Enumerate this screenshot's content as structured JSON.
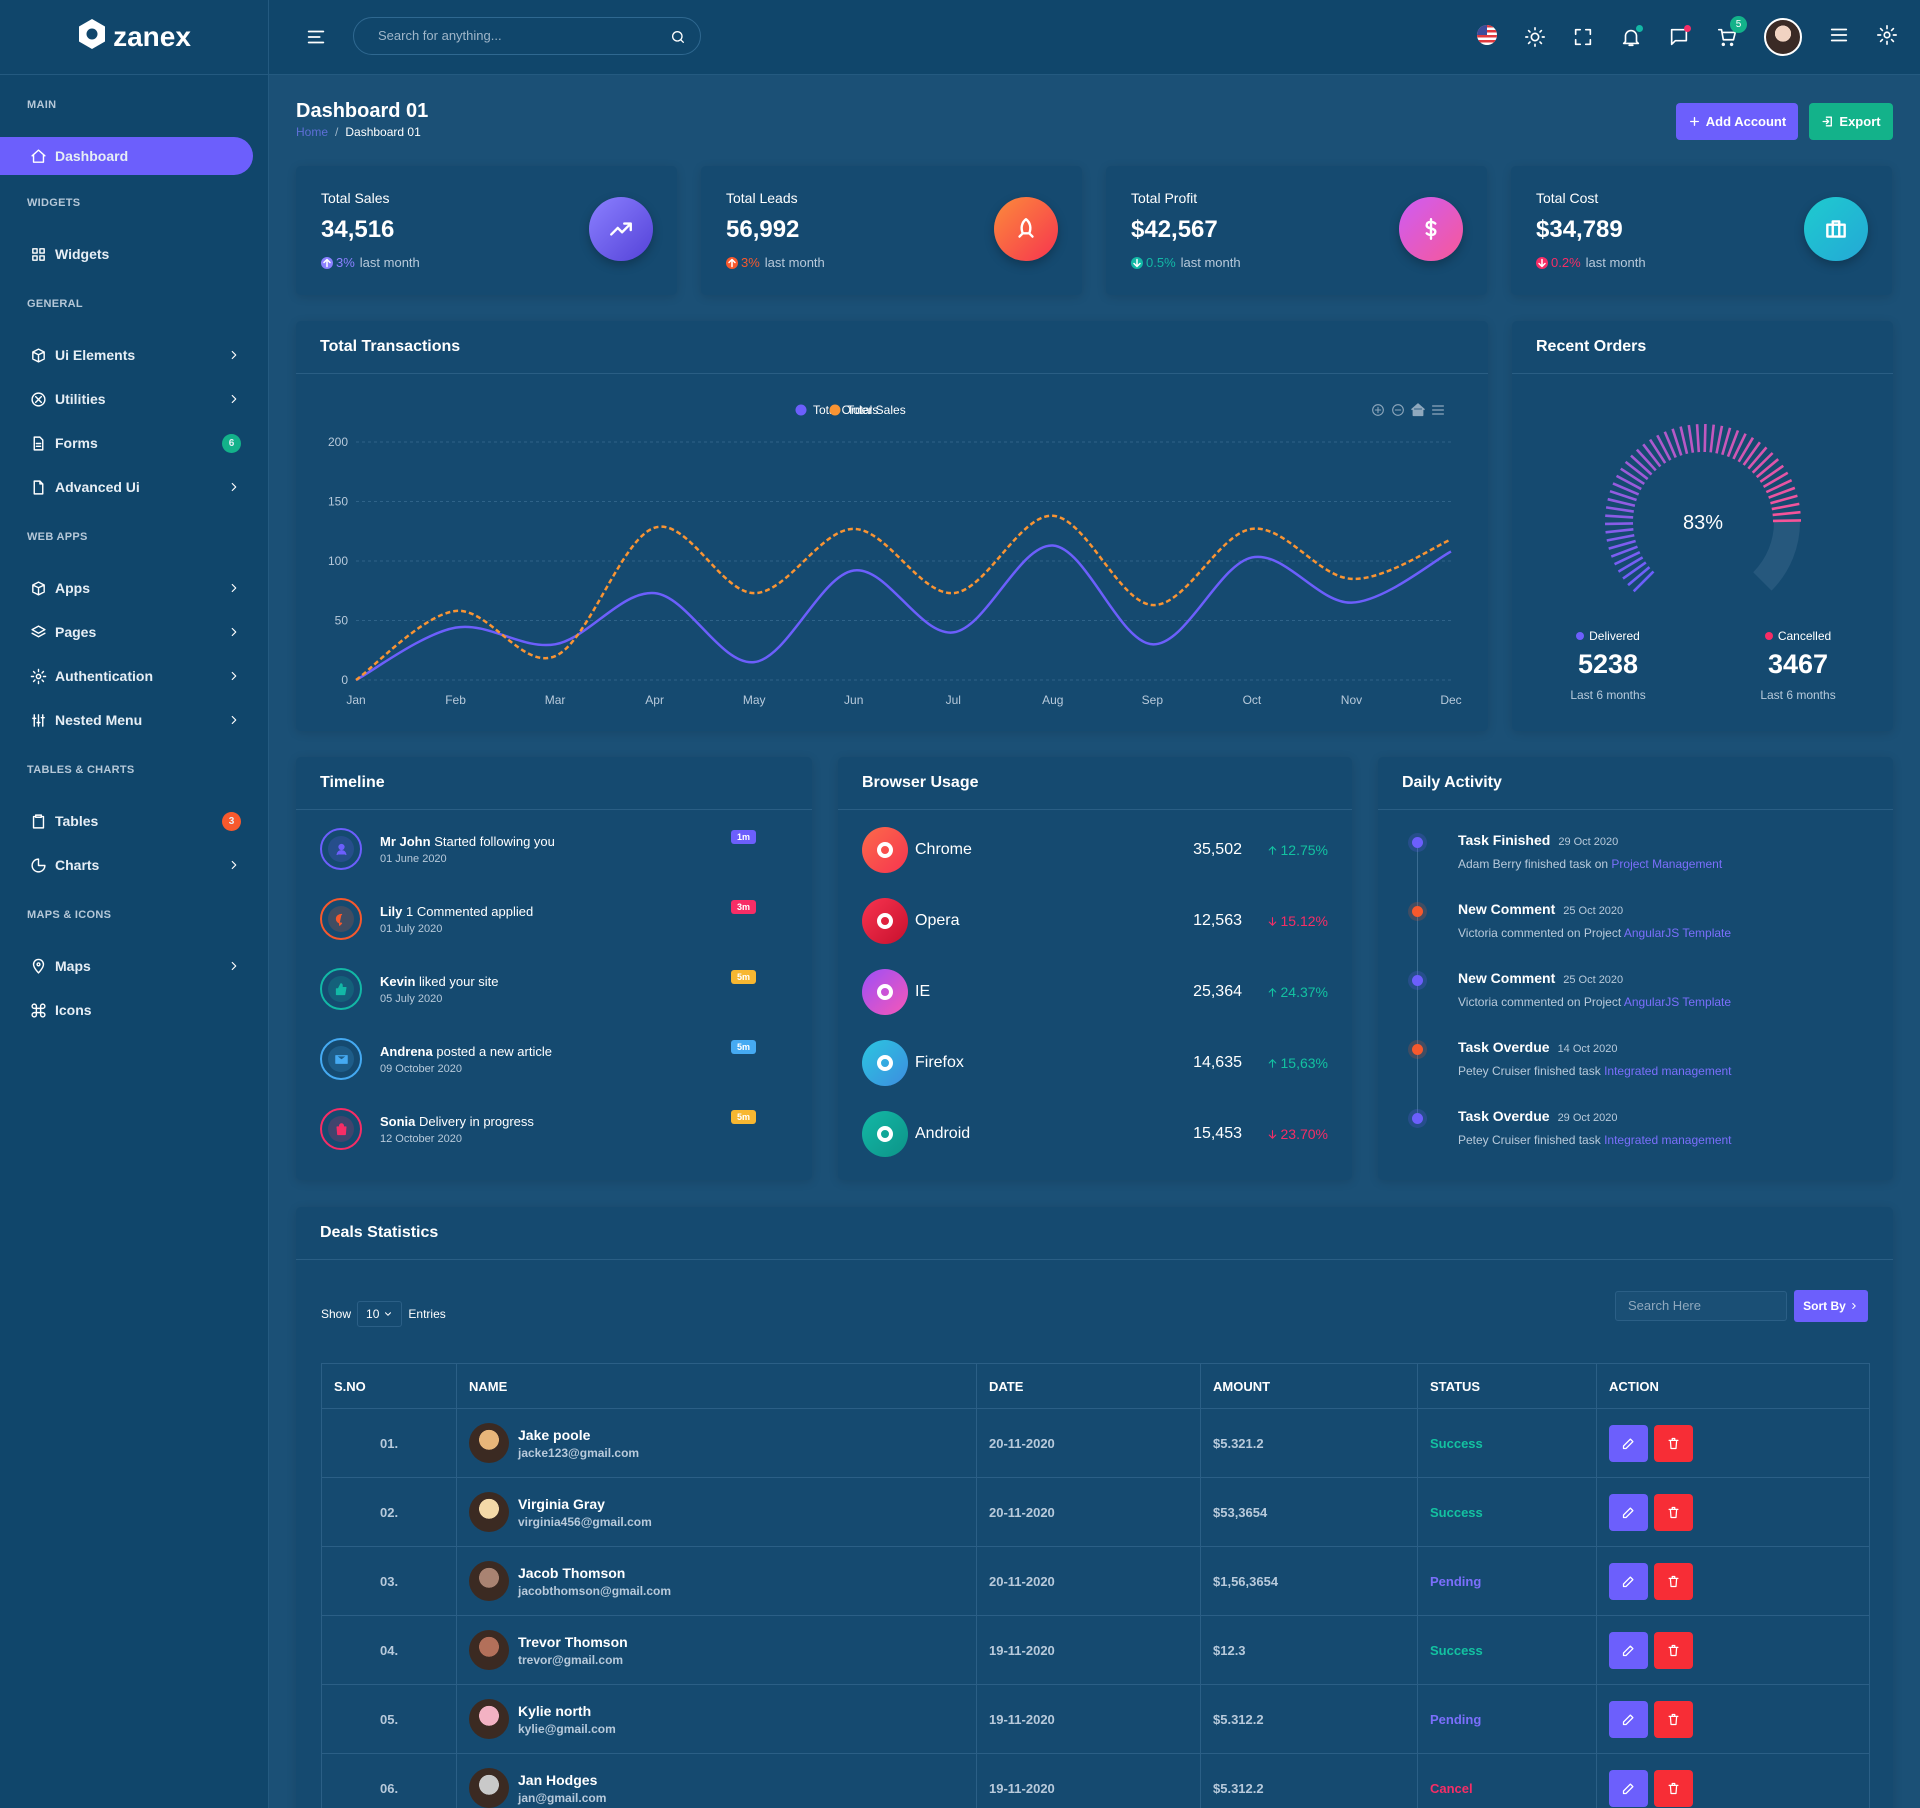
{
  "brand": "zanex",
  "search_placeholder": "Search for anything...",
  "cart_count": "5",
  "sidebar": [
    {
      "title": "MAIN",
      "items": [
        {
          "label": "Dashboard",
          "active": true
        }
      ]
    },
    {
      "title": "WIDGETS",
      "items": [
        {
          "label": "Widgets"
        }
      ]
    },
    {
      "title": "GENERAL",
      "items": [
        {
          "label": "Ui Elements",
          "submenu": true
        },
        {
          "label": "Utilities",
          "submenu": true
        },
        {
          "label": "Forms",
          "badge": "6",
          "badge_color": "#13b28a"
        },
        {
          "label": "Advanced Ui",
          "submenu": true
        }
      ]
    },
    {
      "title": "WEB APPS",
      "items": [
        {
          "label": "Apps",
          "submenu": true
        },
        {
          "label": "Pages",
          "submenu": true
        },
        {
          "label": "Authentication",
          "submenu": true
        },
        {
          "label": "Nested Menu",
          "submenu": true
        }
      ]
    },
    {
      "title": "TABLES & CHARTS",
      "items": [
        {
          "label": "Tables",
          "badge": "3",
          "badge_color": "#f7592d"
        },
        {
          "label": "Charts",
          "submenu": true
        }
      ]
    },
    {
      "title": "MAPS & ICONS",
      "items": [
        {
          "label": "Maps",
          "submenu": true
        },
        {
          "label": "Icons"
        }
      ]
    }
  ],
  "page": {
    "title": "Dashboard 01",
    "breadcrumb": [
      "Home",
      "Dashboard 01"
    ],
    "buttons": [
      "Add Account",
      "Export"
    ]
  },
  "stats": [
    {
      "label": "Total Sales",
      "value": "34,516",
      "change": "3%",
      "note": "last month",
      "direction": "up",
      "color": "#8b80ff"
    },
    {
      "label": "Total Leads",
      "value": "56,992",
      "change": "3%",
      "note": "last month",
      "direction": "up",
      "color": "#f7592d"
    },
    {
      "label": "Total Profit",
      "value": "$42,567",
      "change": "0.5%",
      "note": "last month",
      "direction": "down",
      "color": "#13b8a6"
    },
    {
      "label": "Total Cost",
      "value": "$34,789",
      "change": "0.2%",
      "note": "last month",
      "direction": "down",
      "color": "#f72d66"
    }
  ],
  "chart_data": {
    "type": "line",
    "title": "Total Transactions",
    "categories": [
      "Jan",
      "Feb",
      "Mar",
      "Apr",
      "May",
      "Jun",
      "Jul",
      "Aug",
      "Sep",
      "Oct",
      "Nov",
      "Dec"
    ],
    "series": [
      {
        "name": "Total Orders",
        "color": "#6c5ffc",
        "values": [
          0,
          44,
          30,
          73,
          15,
          92,
          40,
          113,
          30,
          103,
          65,
          108
        ]
      },
      {
        "name": "Total Sales",
        "color": "#f99433",
        "dashed": true,
        "values": [
          0,
          58,
          20,
          128,
          73,
          127,
          73,
          138,
          63,
          127,
          85,
          118
        ]
      }
    ],
    "ylim": [
      0,
      200
    ],
    "yticks": [
      0,
      50,
      100,
      150,
      200
    ],
    "grid": true
  },
  "recent_orders": {
    "title": "Recent Orders",
    "percent": {
      "value": 83,
      "label": "83%"
    },
    "stats": [
      {
        "label": "Delivered",
        "value": 5238,
        "note": "Last 6 months",
        "color": "#6c5ffc"
      },
      {
        "label": "Cancelled",
        "value": 3467,
        "note": "Last 6 months",
        "color": "#f72d66"
      }
    ]
  },
  "timeline": {
    "title": "Timeline",
    "items": [
      {
        "name": "Mr John",
        "text": "Started following you",
        "date": "01 June 2020",
        "badge": "1m",
        "color": "#6c5ffc"
      },
      {
        "name": "Lily",
        "text": "1 Commented applied",
        "date": "01 July 2020",
        "badge": "3m",
        "color": "#f7592d",
        "badge_color": "#f72d66"
      },
      {
        "name": "Kevin",
        "text": "liked your site",
        "date": "05 July 2020",
        "badge": "5m",
        "color": "#13b8a6",
        "badge_color": "#f7b731"
      },
      {
        "name": "Andrena",
        "text": "posted a new article",
        "date": "09 October 2020",
        "badge": "5m",
        "color": "#45aaf2"
      },
      {
        "name": "Sonia",
        "text": "Delivery in progress",
        "date": "12 October 2020",
        "badge": "5m",
        "color": "#f72d66",
        "badge_color": "#f7b731"
      }
    ]
  },
  "browser_usage": {
    "title": "Browser Usage",
    "items": [
      {
        "name": "Chrome",
        "value": "35,502",
        "change": "12.75%",
        "direction": "up"
      },
      {
        "name": "Opera",
        "value": "12,563",
        "change": "15.12%",
        "direction": "down"
      },
      {
        "name": "IE",
        "value": "25,364",
        "change": "24.37%",
        "direction": "up"
      },
      {
        "name": "Firefox",
        "value": "14,635",
        "change": "15,63%",
        "direction": "up"
      },
      {
        "name": "Android",
        "value": "15,453",
        "change": "23.70%",
        "direction": "down"
      }
    ]
  },
  "daily_activity": {
    "title": "Daily Activity",
    "items": [
      {
        "title": "Task Finished",
        "date": "29 Oct 2020",
        "text": "Adam Berry finished task on",
        "link": "Project Management",
        "color": "#6c5ffc"
      },
      {
        "title": "New Comment",
        "date": "25 Oct 2020",
        "text": "Victoria commented on Project",
        "link": "AngularJS Template",
        "color": "#f7592d"
      },
      {
        "title": "New Comment",
        "date": "25 Oct 2020",
        "text": "Victoria commented on Project",
        "link": "AngularJS Template",
        "color": "#6c5ffc"
      },
      {
        "title": "Task Overdue",
        "date": "14 Oct 2020",
        "text": "Petey Cruiser finished task",
        "link": "Integrated management",
        "color": "#f7592d"
      },
      {
        "title": "Task Overdue",
        "date": "29 Oct 2020",
        "text": "Petey Cruiser finished task",
        "link": "Integrated management",
        "color": "#6c5ffc"
      }
    ]
  },
  "deals": {
    "title": "Deals Statistics",
    "show": "Show",
    "entries_count": "10",
    "entries": "Entries",
    "search_placeholder": "Search Here",
    "sort": "Sort By",
    "columns": [
      "S.NO",
      "NAME",
      "DATE",
      "AMOUNT",
      "STATUS",
      "ACTION"
    ],
    "rows": [
      {
        "sno": "01.",
        "name": "Jake poole",
        "email": "jacke123@gmail.com",
        "date": "20-11-2020",
        "amount": "$5.321.2",
        "status": "Success"
      },
      {
        "sno": "02.",
        "name": "Virginia Gray",
        "email": "virginia456@gmail.com",
        "date": "20-11-2020",
        "amount": "$53,3654",
        "status": "Success"
      },
      {
        "sno": "03.",
        "name": "Jacob Thomson",
        "email": "jacobthomson@gmail.com",
        "date": "20-11-2020",
        "amount": "$1,56,3654",
        "status": "Pending"
      },
      {
        "sno": "04.",
        "name": "Trevor Thomson",
        "email": "trevor@gmail.com",
        "date": "19-11-2020",
        "amount": "$12.3",
        "status": "Success"
      },
      {
        "sno": "05.",
        "name": "Kylie north",
        "email": "kylie@gmail.com",
        "date": "19-11-2020",
        "amount": "$5.312.2",
        "status": "Pending"
      },
      {
        "sno": "06.",
        "name": "Jan Hodges",
        "email": "jan@gmail.com",
        "date": "19-11-2020",
        "amount": "$5.312.2",
        "status": "Cancel"
      }
    ]
  }
}
